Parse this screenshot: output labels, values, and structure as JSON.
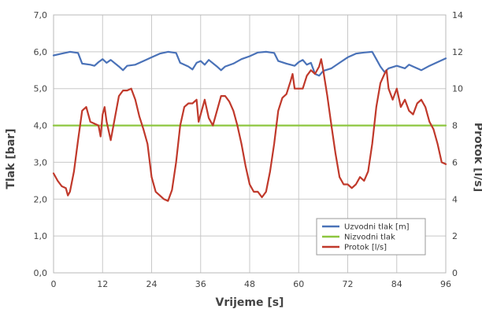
{
  "chart_data": {
    "type": "line",
    "xlabel": "Vrijeme [s]",
    "ylabel_left": "Tlak [bar]",
    "ylabel_right": "Protok [l/s]",
    "xlim": [
      0,
      96
    ],
    "ylim_left": [
      0,
      7
    ],
    "ylim_right": [
      0,
      14
    ],
    "x_ticks": [
      0,
      12,
      24,
      36,
      48,
      60,
      72,
      84,
      96
    ],
    "y_left_ticks": [
      "0,0",
      "1,0",
      "2,0",
      "3,0",
      "4,0",
      "5,0",
      "6,0",
      "7,0"
    ],
    "y_right_ticks": [
      0,
      2,
      4,
      6,
      8,
      10,
      12,
      14
    ],
    "grid": true,
    "legend_position": "bottom-right",
    "series": [
      {
        "name": "Uzvodni tlak [m]",
        "axis": "left",
        "color": "#4a72b8",
        "points": [
          [
            0,
            5.9
          ],
          [
            2,
            5.95
          ],
          [
            4,
            6.0
          ],
          [
            6,
            5.97
          ],
          [
            7,
            5.68
          ],
          [
            9,
            5.65
          ],
          [
            10,
            5.62
          ],
          [
            11,
            5.72
          ],
          [
            12,
            5.8
          ],
          [
            13,
            5.7
          ],
          [
            14,
            5.78
          ],
          [
            16,
            5.6
          ],
          [
            17,
            5.5
          ],
          [
            18,
            5.62
          ],
          [
            20,
            5.65
          ],
          [
            22,
            5.75
          ],
          [
            24,
            5.85
          ],
          [
            26,
            5.95
          ],
          [
            28,
            6.0
          ],
          [
            30,
            5.97
          ],
          [
            31,
            5.7
          ],
          [
            33,
            5.6
          ],
          [
            34,
            5.52
          ],
          [
            35,
            5.7
          ],
          [
            36,
            5.75
          ],
          [
            37,
            5.65
          ],
          [
            38,
            5.78
          ],
          [
            40,
            5.6
          ],
          [
            41,
            5.5
          ],
          [
            42,
            5.6
          ],
          [
            44,
            5.68
          ],
          [
            46,
            5.8
          ],
          [
            48,
            5.88
          ],
          [
            50,
            5.98
          ],
          [
            52,
            6.0
          ],
          [
            54,
            5.97
          ],
          [
            55,
            5.75
          ],
          [
            57,
            5.68
          ],
          [
            59,
            5.62
          ],
          [
            60,
            5.72
          ],
          [
            61,
            5.78
          ],
          [
            62,
            5.65
          ],
          [
            63,
            5.7
          ],
          [
            64,
            5.4
          ],
          [
            65,
            5.35
          ],
          [
            66,
            5.48
          ],
          [
            68,
            5.55
          ],
          [
            70,
            5.7
          ],
          [
            72,
            5.85
          ],
          [
            74,
            5.95
          ],
          [
            76,
            5.98
          ],
          [
            78,
            6.0
          ],
          [
            79,
            5.8
          ],
          [
            80,
            5.6
          ],
          [
            81,
            5.45
          ],
          [
            82,
            5.55
          ],
          [
            84,
            5.62
          ],
          [
            86,
            5.55
          ],
          [
            87,
            5.65
          ],
          [
            88,
            5.6
          ],
          [
            90,
            5.5
          ],
          [
            92,
            5.62
          ],
          [
            94,
            5.72
          ],
          [
            96,
            5.82
          ]
        ]
      },
      {
        "name": "Nizvodni tlak",
        "axis": "left",
        "color": "#8dc63f",
        "points": [
          [
            0,
            4.0
          ],
          [
            96,
            4.0
          ]
        ]
      },
      {
        "name": "Protok [l/s]",
        "axis": "right",
        "color": "#c0392b",
        "points": [
          [
            0,
            5.4
          ],
          [
            1,
            5.0
          ],
          [
            2,
            4.7
          ],
          [
            3,
            4.6
          ],
          [
            3.5,
            4.2
          ],
          [
            4,
            4.4
          ],
          [
            5,
            5.5
          ],
          [
            6,
            7.2
          ],
          [
            7,
            8.8
          ],
          [
            8,
            9.0
          ],
          [
            9,
            8.2
          ],
          [
            10,
            8.1
          ],
          [
            11,
            8.0
          ],
          [
            11.5,
            7.4
          ],
          [
            12,
            8.6
          ],
          [
            12.5,
            9.0
          ],
          [
            13,
            8.2
          ],
          [
            14,
            7.2
          ],
          [
            15,
            8.4
          ],
          [
            16,
            9.6
          ],
          [
            17,
            9.9
          ],
          [
            18,
            9.9
          ],
          [
            19,
            10.0
          ],
          [
            20,
            9.4
          ],
          [
            21,
            8.5
          ],
          [
            22,
            7.8
          ],
          [
            23,
            7.0
          ],
          [
            24,
            5.2
          ],
          [
            25,
            4.4
          ],
          [
            26,
            4.2
          ],
          [
            27,
            4.0
          ],
          [
            28,
            3.9
          ],
          [
            29,
            4.5
          ],
          [
            30,
            6.0
          ],
          [
            31,
            8.0
          ],
          [
            32,
            9.0
          ],
          [
            33,
            9.2
          ],
          [
            34,
            9.2
          ],
          [
            35,
            9.4
          ],
          [
            35.5,
            8.2
          ],
          [
            36,
            8.6
          ],
          [
            37,
            9.4
          ],
          [
            38,
            8.4
          ],
          [
            39,
            8.0
          ],
          [
            40,
            8.8
          ],
          [
            41,
            9.6
          ],
          [
            42,
            9.6
          ],
          [
            43,
            9.3
          ],
          [
            44,
            8.8
          ],
          [
            45,
            8.0
          ],
          [
            46,
            7.0
          ],
          [
            47,
            5.8
          ],
          [
            48,
            4.8
          ],
          [
            49,
            4.4
          ],
          [
            50,
            4.4
          ],
          [
            51,
            4.1
          ],
          [
            52,
            4.4
          ],
          [
            53,
            5.5
          ],
          [
            54,
            7.0
          ],
          [
            55,
            8.8
          ],
          [
            56,
            9.5
          ],
          [
            57,
            9.7
          ],
          [
            58,
            10.4
          ],
          [
            58.5,
            10.8
          ],
          [
            59,
            10.0
          ],
          [
            60,
            10.0
          ],
          [
            61,
            10.0
          ],
          [
            62,
            10.7
          ],
          [
            63,
            11.0
          ],
          [
            64,
            10.8
          ],
          [
            65,
            11.2
          ],
          [
            65.5,
            11.6
          ],
          [
            66,
            11.0
          ],
          [
            67,
            9.6
          ],
          [
            68,
            8.0
          ],
          [
            69,
            6.5
          ],
          [
            70,
            5.2
          ],
          [
            71,
            4.8
          ],
          [
            72,
            4.8
          ],
          [
            73,
            4.6
          ],
          [
            74,
            4.8
          ],
          [
            75,
            5.2
          ],
          [
            76,
            5.0
          ],
          [
            77,
            5.5
          ],
          [
            78,
            7.0
          ],
          [
            79,
            9.0
          ],
          [
            80,
            10.3
          ],
          [
            81,
            10.8
          ],
          [
            81.5,
            11.0
          ],
          [
            82,
            10.0
          ],
          [
            83,
            9.4
          ],
          [
            84,
            10.0
          ],
          [
            85,
            9.0
          ],
          [
            86,
            9.4
          ],
          [
            87,
            8.8
          ],
          [
            88,
            8.6
          ],
          [
            89,
            9.2
          ],
          [
            90,
            9.4
          ],
          [
            91,
            9.0
          ],
          [
            92,
            8.2
          ],
          [
            93,
            7.8
          ],
          [
            94,
            7.0
          ],
          [
            95,
            6.0
          ],
          [
            96,
            5.9
          ]
        ]
      }
    ]
  }
}
